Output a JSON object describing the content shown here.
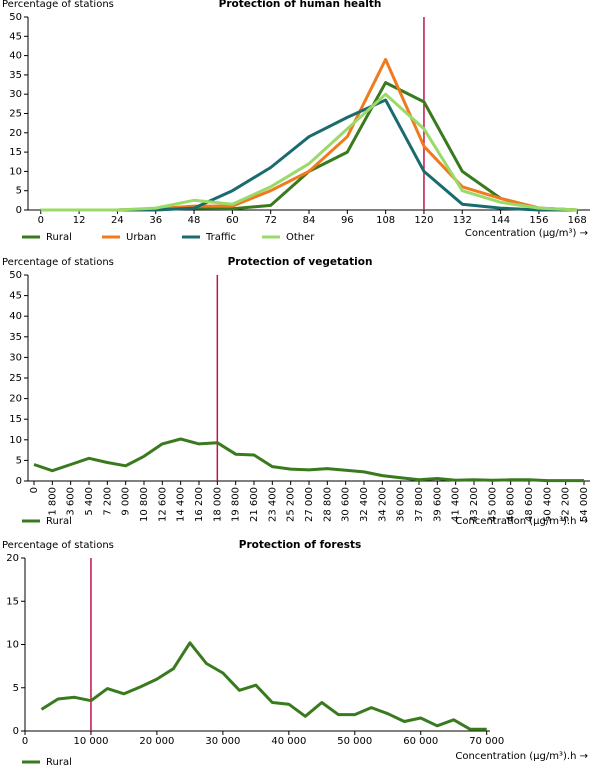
{
  "chart_data": [
    {
      "type": "line",
      "title": "Protection of human health",
      "y_label": "Percentage of stations",
      "x_label": "Concentration (μg/m³) →",
      "x": [
        0,
        12,
        24,
        36,
        48,
        60,
        72,
        84,
        96,
        108,
        120,
        132,
        144,
        156,
        168
      ],
      "xlim": [
        -4,
        172
      ],
      "xticks": [
        0,
        12,
        24,
        36,
        48,
        60,
        72,
        84,
        96,
        108,
        120,
        132,
        144,
        156,
        168
      ],
      "ylim": [
        0,
        50
      ],
      "yticks": [
        0,
        5,
        10,
        15,
        20,
        25,
        30,
        35,
        40,
        45,
        50
      ],
      "threshold": 120,
      "legend": "bottom-left",
      "series": [
        {
          "name": "Rural",
          "color": "#3a7a1e",
          "values": [
            0,
            0,
            0,
            0.3,
            0.5,
            0.3,
            1.2,
            10,
            15,
            33,
            28,
            10,
            3,
            0.5,
            0
          ]
        },
        {
          "name": "Urban",
          "color": "#f07a1e",
          "values": [
            0,
            0,
            0,
            0.3,
            1,
            1,
            5,
            10,
            19,
            39,
            16.5,
            6,
            3,
            0.5,
            0
          ]
        },
        {
          "name": "Traffic",
          "color": "#1a6b6e",
          "values": [
            0,
            0,
            0,
            0,
            0.5,
            5,
            11,
            19,
            24,
            28.5,
            10,
            1.5,
            0.5,
            0,
            0
          ]
        },
        {
          "name": "Other",
          "color": "#9ada68",
          "values": [
            0,
            0,
            0,
            0.5,
            2.5,
            1.5,
            6,
            12,
            21,
            30,
            21,
            5,
            2,
            0.5,
            0
          ]
        }
      ]
    },
    {
      "type": "line",
      "title": "Protection of vegetation",
      "y_label": "Percentage of stations",
      "x_label": "Concentration (μg/m³).h →",
      "categories": [
        "0",
        "1 800",
        "3 600",
        "5 400",
        "7 200",
        "9 000",
        "10 800",
        "12 600",
        "14 400",
        "16 200",
        "18 000",
        "19 800",
        "21 600",
        "23 400",
        "25 200",
        "27 000",
        "28 800",
        "30 600",
        "32 400",
        "34 200",
        "36 000",
        "37 800",
        "39 600",
        "41 400",
        "43 200",
        "45 000",
        "46 800",
        "48 600",
        "50 400",
        "52 200",
        "54 000"
      ],
      "ylim": [
        0,
        50
      ],
      "yticks": [
        0,
        5,
        10,
        15,
        20,
        25,
        30,
        35,
        40,
        45,
        50
      ],
      "threshold": "18 000",
      "legend": "bottom-left",
      "series": [
        {
          "name": "Rural",
          "color": "#3a7a1e",
          "values": [
            4,
            2.5,
            4,
            5.5,
            4.5,
            3.7,
            6,
            9,
            10.2,
            9,
            9.3,
            6.5,
            6.3,
            3.5,
            2.9,
            2.7,
            3,
            2.6,
            2.2,
            1.3,
            0.8,
            0.3,
            0.6,
            0.2,
            0.3,
            0.2,
            0.3,
            0.3,
            0.1,
            0.1,
            0.1
          ]
        }
      ]
    },
    {
      "type": "line",
      "title": "Protection of forests",
      "y_label": "Percentage of stations",
      "x_label": "Concentration (μg/m³).h →",
      "x": [
        2500,
        5000,
        7500,
        10000,
        12500,
        15000,
        17500,
        20000,
        22500,
        25000,
        27500,
        30000,
        32500,
        35000,
        37500,
        40000,
        42500,
        45000,
        47500,
        50000,
        52500,
        55000,
        57500,
        60000,
        62500,
        65000,
        67500,
        70000
      ],
      "xlim": [
        0,
        70500
      ],
      "xticks": [
        0,
        {
          "value": 10000,
          "label": "10 000"
        },
        {
          "value": 20000,
          "label": "20 000"
        },
        {
          "value": 30000,
          "label": "30 000"
        },
        {
          "value": 40000,
          "label": "40 000"
        },
        {
          "value": 50000,
          "label": "50 000"
        },
        {
          "value": 60000,
          "label": "60 000"
        },
        {
          "value": 70000,
          "label": "70 000"
        }
      ],
      "ylim": [
        0,
        20
      ],
      "yticks": [
        0,
        5,
        10,
        15,
        20
      ],
      "threshold": 10000,
      "legend": "bottom-left",
      "series": [
        {
          "name": "Rural",
          "color": "#3a7a1e",
          "values": [
            2.5,
            3.7,
            3.9,
            3.5,
            4.9,
            4.3,
            5.1,
            6,
            7.2,
            10.2,
            7.8,
            6.7,
            4.7,
            5.3,
            3.3,
            3.1,
            1.7,
            3.3,
            1.9,
            1.9,
            2.7,
            2,
            1.1,
            1.5,
            0.6,
            1.3,
            0.2,
            0.2
          ]
        }
      ]
    }
  ]
}
